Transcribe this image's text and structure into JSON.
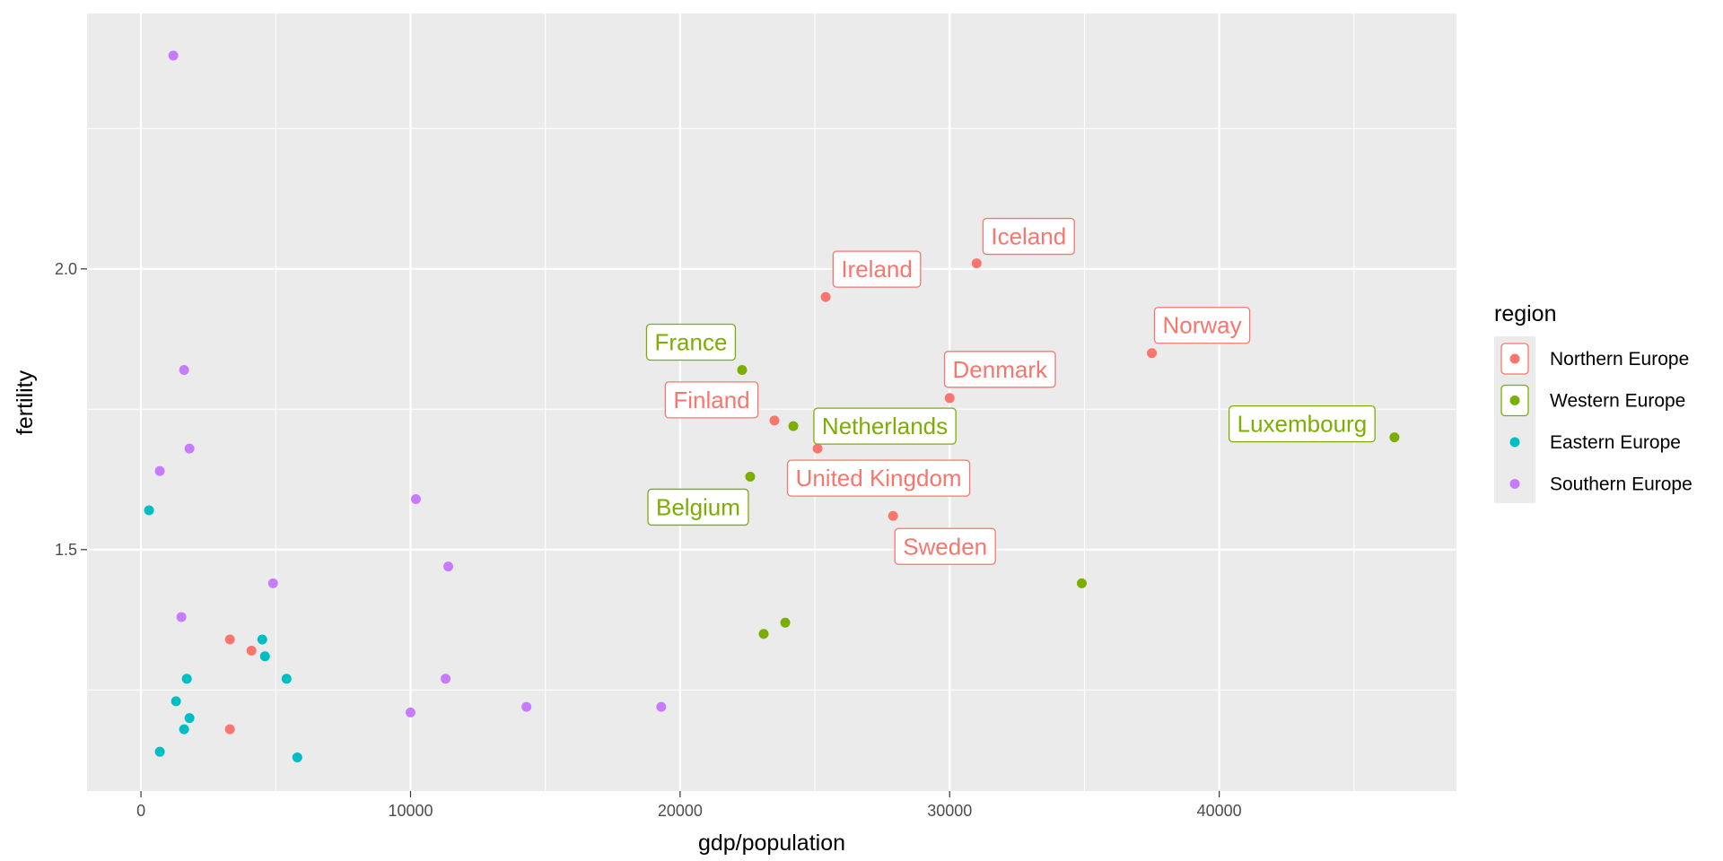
{
  "chart_data": {
    "type": "scatter",
    "title": "",
    "xlabel": "gdp/population",
    "ylabel": "fertility",
    "xlim": [
      -2000,
      48800
    ],
    "ylim": [
      1.07,
      2.455
    ],
    "x_ticks": [
      0,
      10000,
      20000,
      30000,
      40000
    ],
    "x_tick_labels": [
      "0",
      "10000",
      "20000",
      "30000",
      "40000"
    ],
    "y_ticks": [
      1.5,
      2.0
    ],
    "y_tick_labels": [
      "1.5",
      "2.0"
    ],
    "grid": true,
    "legend": {
      "title": "region",
      "position": "right",
      "entries": [
        "Northern Europe",
        "Western Europe",
        "Eastern Europe",
        "Southern Europe"
      ]
    },
    "colors": {
      "Northern Europe": "#F8766D",
      "Western Europe": "#7CAE00",
      "Eastern Europe": "#00BFC4",
      "Southern Europe": "#C77CFF"
    },
    "series": [
      {
        "name": "Northern Europe",
        "points": [
          {
            "x": 31000,
            "y": 2.01,
            "label": "Iceland"
          },
          {
            "x": 25400,
            "y": 1.95,
            "label": "Ireland"
          },
          {
            "x": 37500,
            "y": 1.85,
            "label": "Norway"
          },
          {
            "x": 30000,
            "y": 1.77,
            "label": "Denmark"
          },
          {
            "x": 23500,
            "y": 1.73,
            "label": "Finland"
          },
          {
            "x": 25100,
            "y": 1.68,
            "label": "United Kingdom"
          },
          {
            "x": 27900,
            "y": 1.56,
            "label": "Sweden"
          },
          {
            "x": 3300,
            "y": 1.34
          },
          {
            "x": 4100,
            "y": 1.32
          },
          {
            "x": 3300,
            "y": 1.18
          }
        ]
      },
      {
        "name": "Western Europe",
        "points": [
          {
            "x": 22300,
            "y": 1.82,
            "label": "France"
          },
          {
            "x": 24200,
            "y": 1.72,
            "label": "Netherlands"
          },
          {
            "x": 46500,
            "y": 1.7,
            "label": "Luxembourg"
          },
          {
            "x": 22600,
            "y": 1.63,
            "label": "Belgium"
          },
          {
            "x": 34900,
            "y": 1.44
          },
          {
            "x": 23900,
            "y": 1.37
          },
          {
            "x": 23100,
            "y": 1.35
          }
        ]
      },
      {
        "name": "Eastern Europe",
        "points": [
          {
            "x": 300,
            "y": 1.57
          },
          {
            "x": 4500,
            "y": 1.34
          },
          {
            "x": 4600,
            "y": 1.31
          },
          {
            "x": 1700,
            "y": 1.27
          },
          {
            "x": 5400,
            "y": 1.27
          },
          {
            "x": 1300,
            "y": 1.23
          },
          {
            "x": 1800,
            "y": 1.2
          },
          {
            "x": 1600,
            "y": 1.18
          },
          {
            "x": 700,
            "y": 1.14
          },
          {
            "x": 5800,
            "y": 1.13
          }
        ]
      },
      {
        "name": "Southern Europe",
        "points": [
          {
            "x": 1200,
            "y": 2.38
          },
          {
            "x": 1600,
            "y": 1.82
          },
          {
            "x": 1800,
            "y": 1.68
          },
          {
            "x": 700,
            "y": 1.64
          },
          {
            "x": 10200,
            "y": 1.59
          },
          {
            "x": 11400,
            "y": 1.47
          },
          {
            "x": 4900,
            "y": 1.44
          },
          {
            "x": 1500,
            "y": 1.38
          },
          {
            "x": 11300,
            "y": 1.27
          },
          {
            "x": 14300,
            "y": 1.22
          },
          {
            "x": 19300,
            "y": 1.22
          },
          {
            "x": 10000,
            "y": 1.21
          }
        ]
      }
    ]
  }
}
